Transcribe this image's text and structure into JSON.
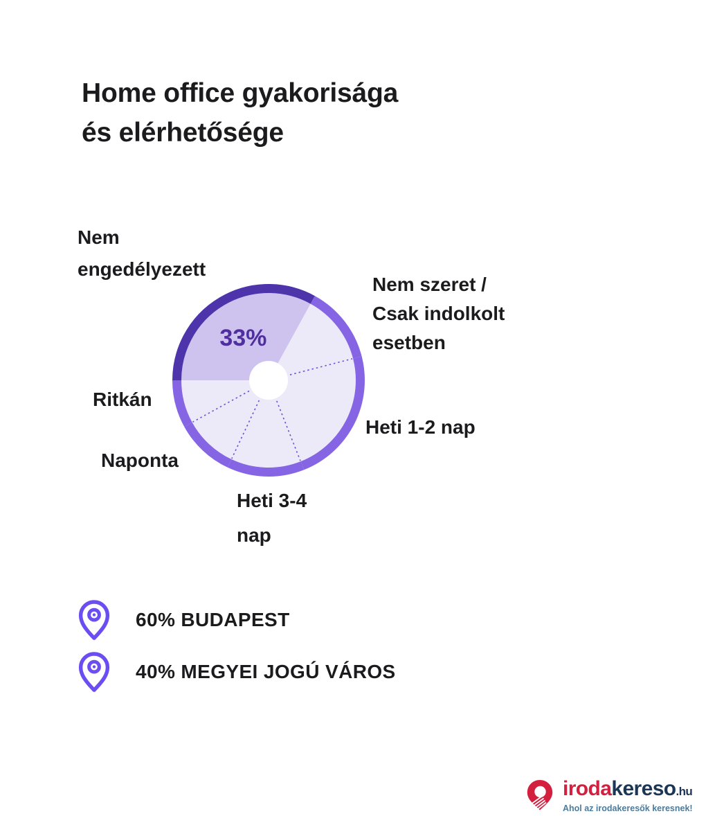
{
  "page": {
    "background": "#ffffff",
    "text_color": "#1b1b1d"
  },
  "title": {
    "line1": "Home office gyakorisága",
    "line2": "és elérhetősége"
  },
  "chart_data": {
    "type": "pie",
    "title": "Home office gyakorisága és elérhetősége",
    "start_angle_deg": 180,
    "direction": "clockwise",
    "donut_hole": true,
    "legend_position": "around-callouts",
    "slices": [
      {
        "label": "Nem engedélyezett",
        "pct": 33,
        "value_label": "33%",
        "emphasized": true
      },
      {
        "label": "Nem szeret / Csak indolkolt esetben",
        "pct": 13,
        "emphasized": false
      },
      {
        "label": "Heti 1-2 nap",
        "pct": 23,
        "emphasized": false
      },
      {
        "label": "Heti 3-4 nap",
        "pct": 13,
        "emphasized": false
      },
      {
        "label": "Naponta",
        "pct": 10,
        "emphasized": false
      },
      {
        "label": "Ritkán",
        "pct": 8,
        "emphasized": false
      }
    ],
    "colors": {
      "ring_emphasis": "#4D34AB",
      "ring_base": "#8565E4",
      "slice_emphasis_fill": "#CEC3EF",
      "slice_base_fill": "#ECE9F8",
      "separator": "#6753D6",
      "value_label": "#4F2FA0",
      "hole": "#FFFFFF"
    }
  },
  "callouts": {
    "nem_engedelyezett": {
      "lines": [
        "Nem",
        "engedélyezett"
      ]
    },
    "nem_szeret": {
      "lines": [
        "Nem szeret /",
        "Csak indolkolt",
        "esetben"
      ]
    },
    "heti_1_2": {
      "lines": [
        "Heti 1-2 nap"
      ]
    },
    "heti_3_4": {
      "lines": [
        "Heti 3-4",
        "nap"
      ]
    },
    "naponta": {
      "lines": [
        "Naponta"
      ]
    },
    "ritkan": {
      "lines": [
        "Ritkán"
      ]
    }
  },
  "stats": {
    "pin_color": "#6C4DF2",
    "items": [
      {
        "icon": "location-pin-icon",
        "text": "60% BUDAPEST"
      },
      {
        "icon": "location-pin-icon",
        "text": "40% MEGYEI JOGÚ VÁROS"
      }
    ]
  },
  "logo": {
    "brand_part1": "iroda",
    "brand_part2": "kereso",
    "brand_tld": ".hu",
    "tagline": "Ahol az irodakeresők keresnek!",
    "colors": {
      "red": "#D2203E",
      "navy": "#1C3655",
      "tagline": "#4A7C9E"
    }
  }
}
